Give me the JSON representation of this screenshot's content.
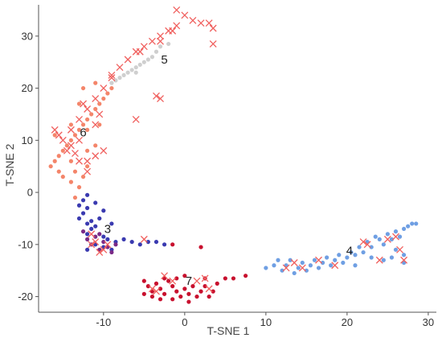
{
  "chart_data": {
    "type": "scatter",
    "title": "",
    "xlabel": "T-SNE 1",
    "ylabel": "T-SNE 2",
    "xlim": [
      -18,
      31
    ],
    "ylim": [
      -23,
      36
    ],
    "xticks": [
      -10,
      0,
      10,
      20,
      30
    ],
    "yticks": [
      -20,
      -10,
      0,
      10,
      20,
      30
    ],
    "grid": false,
    "colors": {
      "cluster_3": "#3a3ab0",
      "cluster_3_purple": "#7b2a86",
      "cluster_4": "#6f9fe3",
      "cluster_5": "#cfcfcf",
      "cluster_6": "#f4856a",
      "cluster_7": "#c8102e",
      "cross": "#f0605e"
    },
    "cluster_labels": [
      {
        "text": "3",
        "x": -9.5,
        "y": -7
      },
      {
        "text": "4",
        "x": 20.3,
        "y": -11.2
      },
      {
        "text": "5",
        "x": -2.5,
        "y": 25.5
      },
      {
        "text": "6",
        "x": -12.5,
        "y": 11.5
      },
      {
        "text": "7",
        "x": 0.5,
        "y": -17
      }
    ],
    "series": [
      {
        "cluster": "5",
        "marker": "dot",
        "color": "#cfcfcf",
        "points": [
          [
            -8,
            22
          ],
          [
            -7.5,
            22.5
          ],
          [
            -7,
            23
          ],
          [
            -6.5,
            23.5
          ],
          [
            -6,
            24
          ],
          [
            -5.5,
            24.5
          ],
          [
            -5,
            25
          ],
          [
            -4.5,
            25.5
          ],
          [
            -4,
            26
          ],
          [
            -3.5,
            27
          ],
          [
            -3,
            28
          ],
          [
            -9,
            21
          ],
          [
            -8.5,
            21.5
          ],
          [
            -6,
            23
          ],
          [
            -2,
            28.5
          ]
        ]
      },
      {
        "cluster": "6",
        "marker": "dot",
        "color": "#f4856a",
        "points": [
          [
            -16.5,
            5
          ],
          [
            -16,
            6
          ],
          [
            -15.5,
            7
          ],
          [
            -15,
            8
          ],
          [
            -14.5,
            9
          ],
          [
            -14,
            10
          ],
          [
            -13.5,
            11
          ],
          [
            -13,
            12
          ],
          [
            -12.5,
            13
          ],
          [
            -12,
            14
          ],
          [
            -11.5,
            15
          ],
          [
            -11,
            16
          ],
          [
            -10.5,
            17
          ],
          [
            -10,
            18
          ],
          [
            -9.5,
            19
          ],
          [
            -9,
            20
          ],
          [
            -11,
            21
          ],
          [
            -12.5,
            20
          ],
          [
            -13,
            17
          ],
          [
            -14,
            6
          ],
          [
            -13.5,
            4
          ],
          [
            -14,
            2
          ],
          [
            -13,
            1
          ],
          [
            -13.5,
            -1
          ],
          [
            -12.5,
            3
          ],
          [
            -12,
            8
          ],
          [
            -11,
            9
          ],
          [
            -12,
            12
          ],
          [
            -10.5,
            13
          ],
          [
            -15.5,
            4
          ],
          [
            -14,
            13
          ],
          [
            -16,
            11
          ],
          [
            -15,
            3
          ],
          [
            -12,
            5
          ]
        ]
      },
      {
        "cluster": "3",
        "marker": "dot",
        "color": "#3a3ab0",
        "points": [
          [
            -12,
            -0.5
          ],
          [
            -12.5,
            -1.5
          ],
          [
            -13,
            -2.5
          ],
          [
            -12,
            -3
          ],
          [
            -12.5,
            -4
          ],
          [
            -13,
            -5
          ],
          [
            -11.5,
            -5.5
          ],
          [
            -12,
            -6
          ],
          [
            -11,
            -6.5
          ],
          [
            -10.5,
            -5
          ],
          [
            -11.5,
            -7
          ],
          [
            -12,
            -8
          ],
          [
            -10,
            -8.5
          ],
          [
            -9.5,
            -9
          ],
          [
            -8.5,
            -9.5
          ],
          [
            -7.5,
            -9
          ],
          [
            -6.5,
            -9.5
          ],
          [
            -5.5,
            -10
          ],
          [
            -4.5,
            -9.5
          ],
          [
            -3.5,
            -9.5
          ],
          [
            -2.5,
            -10
          ],
          [
            -11,
            -10
          ],
          [
            -10,
            -10.5
          ],
          [
            -11,
            -2
          ],
          [
            -10,
            -3.5
          ],
          [
            -9,
            -6
          ],
          [
            -12,
            -11
          ],
          [
            -9,
            -11
          ]
        ]
      },
      {
        "cluster": "3",
        "marker": "dot",
        "color": "#7b2a86",
        "points": [
          [
            -12.5,
            -7.5
          ],
          [
            -12,
            -9
          ],
          [
            -11.5,
            -10
          ],
          [
            -10.5,
            -11
          ],
          [
            -10,
            -9.5
          ],
          [
            -9.5,
            -10.5
          ],
          [
            -9,
            -11.5
          ],
          [
            -11,
            -8.5
          ],
          [
            -8.5,
            -10
          ],
          [
            -10.5,
            -8
          ]
        ]
      },
      {
        "cluster": "4",
        "marker": "dot",
        "color": "#6f9fe3",
        "points": [
          [
            10,
            -14.5
          ],
          [
            11,
            -14
          ],
          [
            11.5,
            -13
          ],
          [
            12,
            -15
          ],
          [
            12.5,
            -14
          ],
          [
            13,
            -13
          ],
          [
            13.5,
            -15.5
          ],
          [
            14,
            -14.5
          ],
          [
            14.5,
            -13.5
          ],
          [
            15,
            -15
          ],
          [
            15.5,
            -14
          ],
          [
            16,
            -13
          ],
          [
            16.5,
            -14.5
          ],
          [
            17,
            -13.5
          ],
          [
            17.5,
            -12.5
          ],
          [
            18,
            -14
          ],
          [
            18.5,
            -13
          ],
          [
            19,
            -12
          ],
          [
            19.5,
            -13.5
          ],
          [
            20,
            -12.5
          ],
          [
            20.5,
            -11.5
          ],
          [
            21,
            -12
          ],
          [
            21.5,
            -10.5
          ],
          [
            22,
            -11.5
          ],
          [
            22.5,
            -9.5
          ],
          [
            23,
            -10.5
          ],
          [
            23.5,
            -8.5
          ],
          [
            24,
            -9
          ],
          [
            24.5,
            -10
          ],
          [
            25,
            -8
          ],
          [
            25.5,
            -9
          ],
          [
            26,
            -7.5
          ],
          [
            26.5,
            -8.5
          ],
          [
            27,
            -7
          ],
          [
            27.5,
            -6.5
          ],
          [
            28,
            -6
          ],
          [
            28.5,
            -6
          ],
          [
            26,
            -11
          ],
          [
            25.5,
            -12.5
          ],
          [
            27,
            -12
          ],
          [
            27,
            -13.5
          ],
          [
            24.5,
            -13
          ],
          [
            23,
            -12.5
          ],
          [
            21,
            -14
          ]
        ]
      },
      {
        "cluster": "7",
        "marker": "dot",
        "color": "#c8102e",
        "points": [
          [
            -5,
            -17
          ],
          [
            -4.5,
            -18
          ],
          [
            -4,
            -19
          ],
          [
            -3.5,
            -17.5
          ],
          [
            -3,
            -18.5
          ],
          [
            -2.5,
            -19.5
          ],
          [
            -2,
            -17
          ],
          [
            -1.5,
            -18
          ],
          [
            -1,
            -19
          ],
          [
            -0.5,
            -20
          ],
          [
            0,
            -18.5
          ],
          [
            0.5,
            -19.5
          ],
          [
            1,
            -18
          ],
          [
            1.5,
            -20
          ],
          [
            2,
            -19
          ],
          [
            2.5,
            -18
          ],
          [
            3,
            -20
          ],
          [
            3.5,
            -19
          ],
          [
            -4,
            -20
          ],
          [
            -3,
            -20.5
          ],
          [
            -1.5,
            -20.5
          ],
          [
            0.5,
            -21
          ],
          [
            -5,
            -19.5
          ],
          [
            2,
            -10.5
          ],
          [
            -1.5,
            -10
          ],
          [
            7.5,
            -16
          ],
          [
            6,
            -16.5
          ],
          [
            5,
            -16.5
          ],
          [
            -2.5,
            -16.5
          ],
          [
            -1,
            -16.5
          ],
          [
            0,
            -16
          ],
          [
            2.5,
            -16.5
          ],
          [
            4,
            -17.5
          ]
        ]
      },
      {
        "cluster": "cross",
        "marker": "x",
        "color": "#f0605e",
        "points": [
          [
            0,
            34
          ],
          [
            1,
            33
          ],
          [
            2,
            32.5
          ],
          [
            -1,
            32
          ],
          [
            -2,
            31
          ],
          [
            -3,
            30
          ],
          [
            -4,
            29
          ],
          [
            -5,
            28
          ],
          [
            -6,
            27
          ],
          [
            -7,
            25.5
          ],
          [
            -8,
            24
          ],
          [
            -9,
            22
          ],
          [
            -10,
            20
          ],
          [
            -11,
            18
          ],
          [
            -12,
            16
          ],
          [
            -13,
            14
          ],
          [
            -14,
            12
          ],
          [
            -15,
            10
          ],
          [
            -14.5,
            8
          ],
          [
            -13,
            6
          ],
          [
            -12,
            4
          ],
          [
            -11,
            7
          ],
          [
            -10,
            8
          ],
          [
            3,
            32.5
          ],
          [
            3.5,
            31.5
          ],
          [
            3.5,
            28.5
          ],
          [
            -3.5,
            18.5
          ],
          [
            -3,
            18
          ],
          [
            -6,
            14
          ],
          [
            -1,
            35
          ],
          [
            -9,
            22.5
          ],
          [
            -16,
            12
          ],
          [
            -15.5,
            11
          ],
          [
            -13,
            10
          ],
          [
            -14,
            9
          ],
          [
            -10.5,
            15
          ],
          [
            -12.5,
            17
          ],
          [
            -11,
            13
          ],
          [
            -12,
            6
          ],
          [
            -13.5,
            7.5
          ],
          [
            -3,
            29
          ],
          [
            -1.5,
            31
          ],
          [
            -5.5,
            27
          ],
          [
            -11.5,
            -8
          ],
          [
            -11,
            -9.5
          ],
          [
            -10,
            -11
          ],
          [
            -9.5,
            -10
          ],
          [
            -5,
            -9
          ],
          [
            -10.5,
            -11.5
          ],
          [
            -11.5,
            -10
          ],
          [
            -3.5,
            -19
          ],
          [
            -2.5,
            -16
          ],
          [
            -1.5,
            -17
          ],
          [
            -4,
            -18.5
          ],
          [
            3,
            -18.5
          ],
          [
            2.5,
            -16.5
          ],
          [
            1.5,
            -17
          ],
          [
            12.5,
            -14.5
          ],
          [
            13.5,
            -13.5
          ],
          [
            14.5,
            -14.5
          ],
          [
            16.5,
            -13
          ],
          [
            18.5,
            -14
          ],
          [
            22,
            -9.5
          ],
          [
            22.5,
            -10
          ],
          [
            24,
            -13
          ],
          [
            25,
            -9
          ],
          [
            26,
            -8.5
          ],
          [
            26.5,
            -11
          ],
          [
            27,
            -13
          ]
        ]
      }
    ]
  }
}
